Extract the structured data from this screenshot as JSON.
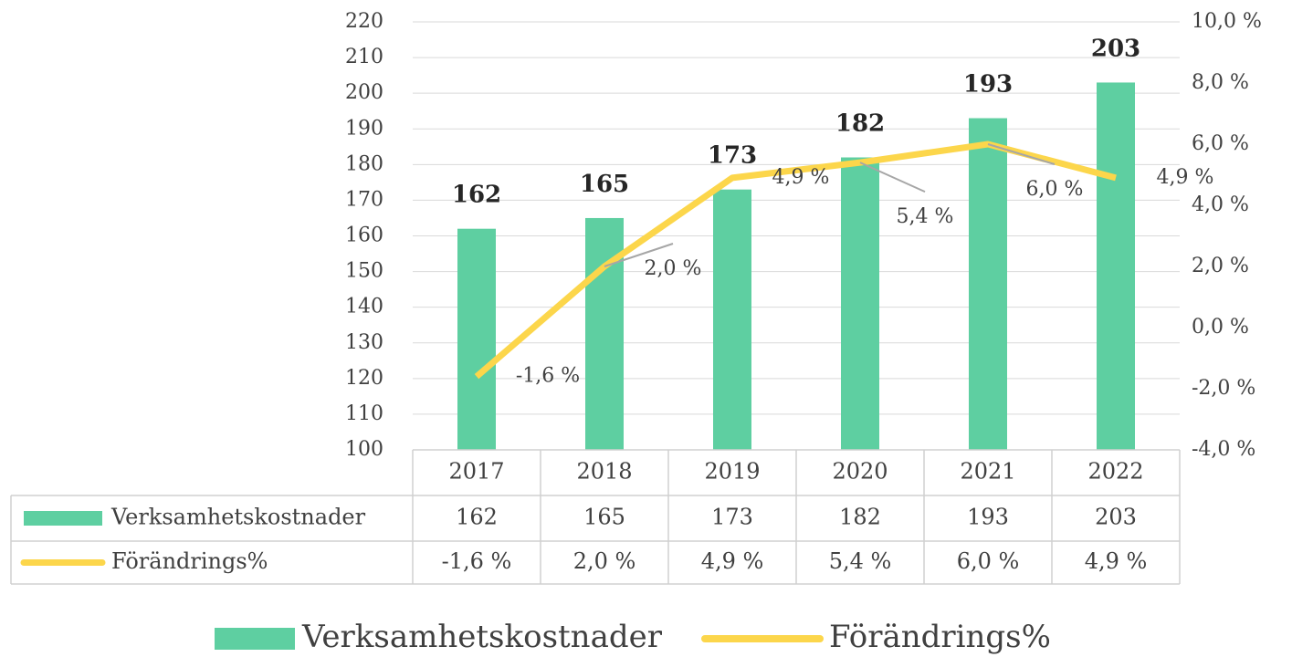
{
  "chart_data": {
    "type": "bar_line",
    "categories": [
      "2017",
      "2018",
      "2019",
      "2020",
      "2021",
      "2022"
    ],
    "series": [
      {
        "name": "Verksamhetskostnader",
        "color": "#5ecfa1",
        "type": "bar",
        "values": [
          162,
          165,
          173,
          182,
          193,
          203
        ]
      },
      {
        "name": "Förändrings%",
        "color": "#fcd64b",
        "type": "line",
        "axis": "y2",
        "values": [
          -1.6,
          2.0,
          4.9,
          5.4,
          6.0,
          4.9
        ],
        "value_labels": [
          "-1,6 %",
          "2,0 %",
          "4,9 %",
          "5,4 %",
          "6,0 %",
          "4,9 %"
        ]
      }
    ],
    "ylim": [
      100,
      220
    ],
    "yticks": [
      100,
      110,
      120,
      130,
      140,
      150,
      160,
      170,
      180,
      190,
      200,
      210,
      220
    ],
    "y2lim": [
      -4,
      10
    ],
    "y2ticks": [
      {
        "value": -4,
        "label": "-4,0 %"
      },
      {
        "value": -2,
        "label": "-2,0 %"
      },
      {
        "value": 0,
        "label": "0,0 %"
      },
      {
        "value": 2,
        "label": "2,0 %"
      },
      {
        "value": 4,
        "label": "4,0 %"
      },
      {
        "value": 6,
        "label": "6,0 %"
      },
      {
        "value": 8,
        "label": "8,0 %"
      },
      {
        "value": 10,
        "label": "10,0 %"
      }
    ],
    "grid": true,
    "data_table": true,
    "legend": "bottom"
  }
}
